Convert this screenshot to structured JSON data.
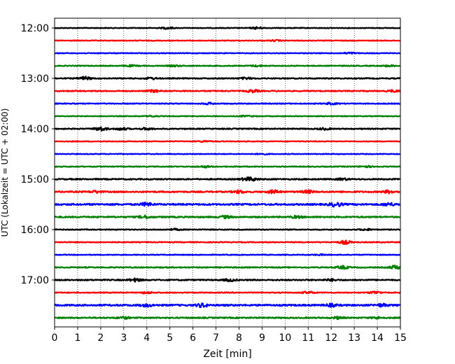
{
  "chart_data": {
    "type": "line",
    "title": "",
    "xlabel": "Zeit  [min]",
    "ylabel": "UTC (Lokalzeit = UTC + 02:00)",
    "xlim": [
      0,
      15
    ],
    "x_ticks": [
      0,
      1,
      2,
      3,
      4,
      5,
      6,
      7,
      8,
      9,
      10,
      11,
      12,
      13,
      14,
      15
    ],
    "y_ticks": [
      "12:00",
      "13:00",
      "14:00",
      "15:00",
      "16:00",
      "17:00"
    ],
    "grid": "vertical dotted",
    "row_interval_minutes": 15,
    "row_colors": [
      "#000000",
      "#ff0000",
      "#0000ff",
      "#008000"
    ],
    "rows": [
      {
        "start": "12:00",
        "color": "#000000",
        "amp": 0.5,
        "bursts": [
          [
            4.9,
            1.2
          ],
          [
            8.8,
            1.4
          ]
        ]
      },
      {
        "start": "12:15",
        "color": "#ff0000",
        "amp": 0.5,
        "bursts": [
          [
            9.6,
            0.8
          ]
        ]
      },
      {
        "start": "12:30",
        "color": "#0000ff",
        "amp": 0.5,
        "bursts": [
          [
            12.8,
            1.0
          ]
        ]
      },
      {
        "start": "12:45",
        "color": "#008000",
        "amp": 0.6,
        "bursts": [
          [
            3.3,
            0.9
          ],
          [
            5.2,
            0.9
          ],
          [
            8.8,
            0.9
          ],
          [
            14.5,
            0.9
          ]
        ]
      },
      {
        "start": "13:00",
        "color": "#000000",
        "amp": 0.7,
        "bursts": [
          [
            1.3,
            2.2
          ],
          [
            4.2,
            1.3
          ],
          [
            8.3,
            1.2
          ]
        ]
      },
      {
        "start": "13:15",
        "color": "#ff0000",
        "amp": 0.7,
        "bursts": [
          [
            4.3,
            1.5
          ],
          [
            8.6,
            1.8
          ],
          [
            14.7,
            1.2
          ]
        ]
      },
      {
        "start": "13:30",
        "color": "#0000ff",
        "amp": 0.6,
        "bursts": [
          [
            6.7,
            1.1
          ],
          [
            12.0,
            1.2
          ]
        ]
      },
      {
        "start": "13:45",
        "color": "#008000",
        "amp": 0.5,
        "bursts": [
          [
            4.2,
            0.8
          ],
          [
            8.3,
            0.9
          ]
        ]
      },
      {
        "start": "14:00",
        "color": "#000000",
        "amp": 0.7,
        "bursts": [
          [
            2.0,
            2.6
          ],
          [
            2.9,
            1.6
          ],
          [
            4.0,
            1.4
          ],
          [
            11.7,
            1.2
          ]
        ]
      },
      {
        "start": "14:15",
        "color": "#ff0000",
        "amp": 0.5,
        "bursts": [
          [
            6.5,
            0.8
          ]
        ]
      },
      {
        "start": "14:30",
        "color": "#0000ff",
        "amp": 0.5,
        "bursts": [
          [
            9.0,
            0.7
          ]
        ]
      },
      {
        "start": "14:45",
        "color": "#008000",
        "amp": 0.6,
        "bursts": [
          [
            6.5,
            1.1
          ],
          [
            13.5,
            1.0
          ]
        ]
      },
      {
        "start": "15:00",
        "color": "#000000",
        "amp": 0.8,
        "bursts": [
          [
            8.3,
            1.6
          ],
          [
            8.6,
            1.6
          ],
          [
            12.5,
            1.2
          ]
        ]
      },
      {
        "start": "15:15",
        "color": "#ff0000",
        "amp": 0.9,
        "bursts": [
          [
            1.8,
            1.4
          ],
          [
            8.0,
            1.8
          ],
          [
            9.5,
            2.2
          ],
          [
            11.0,
            1.8
          ],
          [
            14.5,
            1.8
          ]
        ]
      },
      {
        "start": "15:30",
        "color": "#0000ff",
        "amp": 1.1,
        "bursts": [
          [
            4.0,
            2.2
          ],
          [
            12.2,
            2.8
          ],
          [
            14.5,
            1.8
          ]
        ]
      },
      {
        "start": "15:45",
        "color": "#008000",
        "amp": 0.9,
        "bursts": [
          [
            3.9,
            1.7
          ],
          [
            7.4,
            1.5
          ],
          [
            10.5,
            1.4
          ]
        ]
      },
      {
        "start": "16:00",
        "color": "#000000",
        "amp": 0.6,
        "bursts": [
          [
            5.2,
            1.0
          ],
          [
            13.5,
            1.0
          ]
        ]
      },
      {
        "start": "16:15",
        "color": "#ff0000",
        "amp": 0.6,
        "bursts": [
          [
            12.6,
            2.4
          ]
        ]
      },
      {
        "start": "16:30",
        "color": "#0000ff",
        "amp": 0.5,
        "bursts": [
          [
            11.5,
            0.8
          ]
        ]
      },
      {
        "start": "16:45",
        "color": "#008000",
        "amp": 0.7,
        "bursts": [
          [
            12.5,
            2.0
          ],
          [
            14.8,
            2.6
          ]
        ]
      },
      {
        "start": "17:00",
        "color": "#000000",
        "amp": 0.8,
        "bursts": [
          [
            3.5,
            2.0
          ],
          [
            7.6,
            1.6
          ],
          [
            12.0,
            1.2
          ]
        ]
      },
      {
        "start": "17:15",
        "color": "#ff0000",
        "amp": 0.6,
        "bursts": [
          [
            4.0,
            1.2
          ],
          [
            11.0,
            1.4
          ],
          [
            13.9,
            1.6
          ]
        ]
      },
      {
        "start": "17:30",
        "color": "#0000ff",
        "amp": 1.1,
        "bursts": [
          [
            4.0,
            1.6
          ],
          [
            6.4,
            2.3
          ],
          [
            12.0,
            1.6
          ],
          [
            14.2,
            1.6
          ]
        ]
      },
      {
        "start": "17:45",
        "color": "#008000",
        "amp": 0.8,
        "bursts": [
          [
            3.0,
            1.4
          ],
          [
            12.3,
            1.4
          ],
          [
            14.0,
            1.2
          ]
        ]
      }
    ]
  }
}
